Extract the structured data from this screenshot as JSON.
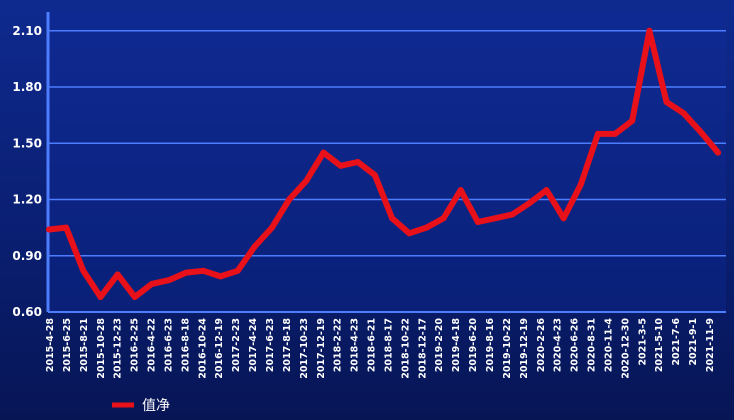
{
  "chart_data": {
    "type": "line",
    "title": "",
    "xlabel": "",
    "ylabel": "",
    "ylim": [
      0.6,
      2.2
    ],
    "y_ticks": [
      "0.60",
      "0.90",
      "1.20",
      "1.50",
      "1.80",
      "2.10"
    ],
    "grid": true,
    "legend_position": "bottom-left",
    "colors": {
      "line": "#e8111a",
      "grid": "#4d7dff",
      "background": "#0a1f72",
      "axis": "#4d7dff"
    },
    "x_ticks": [
      "2015-4-28",
      "2015-6-25",
      "2015-8-21",
      "2015-10-28",
      "2015-12-23",
      "2016-2-25",
      "2016-4-22",
      "2016-6-23",
      "2016-8-18",
      "2016-10-24",
      "2016-12-19",
      "2017-2-23",
      "2017-4-24",
      "2017-6-23",
      "2017-8-18",
      "2017-10-23",
      "2017-12-19",
      "2018-2-22",
      "2018-4-23",
      "2018-6-21",
      "2018-8-17",
      "2018-10-22",
      "2018-12-17",
      "2019-2-20",
      "2019-4-18",
      "2019-6-20",
      "2019-8-16",
      "2019-10-22",
      "2019-12-19",
      "2020-2-26",
      "2020-4-23",
      "2020-6-26",
      "2020-8-31",
      "2020-11-4",
      "2020-12-30",
      "2021-3-5",
      "2021-5-10",
      "2021-7-6",
      "2021-9-1",
      "2021-11-9"
    ],
    "series": [
      {
        "name": "值净",
        "x": [
          "2015-4-28",
          "2015-6-25",
          "2015-8-21",
          "2015-10-28",
          "2015-12-23",
          "2016-2-25",
          "2016-4-22",
          "2016-6-23",
          "2016-8-18",
          "2016-10-24",
          "2016-12-19",
          "2017-2-23",
          "2017-4-24",
          "2017-6-23",
          "2017-8-18",
          "2017-10-23",
          "2017-12-19",
          "2018-2-22",
          "2018-4-23",
          "2018-6-21",
          "2018-8-17",
          "2018-10-22",
          "2018-12-17",
          "2019-2-20",
          "2019-4-18",
          "2019-6-20",
          "2019-8-16",
          "2019-10-22",
          "2019-12-19",
          "2020-2-26",
          "2020-4-23",
          "2020-6-26",
          "2020-8-31",
          "2020-11-4",
          "2020-12-30",
          "2021-3-5",
          "2021-5-10",
          "2021-7-6",
          "2021-9-1",
          "2021-11-9"
        ],
        "values": [
          1.04,
          1.05,
          0.82,
          0.68,
          0.8,
          0.68,
          0.75,
          0.77,
          0.81,
          0.82,
          0.79,
          0.82,
          0.95,
          1.05,
          1.2,
          1.3,
          1.45,
          1.38,
          1.4,
          1.33,
          1.1,
          1.02,
          1.05,
          1.1,
          1.25,
          1.08,
          1.1,
          1.12,
          1.18,
          1.25,
          1.1,
          1.28,
          1.55,
          1.55,
          1.62,
          2.1,
          1.72,
          1.66,
          1.56,
          1.45
        ],
        "color": "#e8111a"
      }
    ]
  }
}
